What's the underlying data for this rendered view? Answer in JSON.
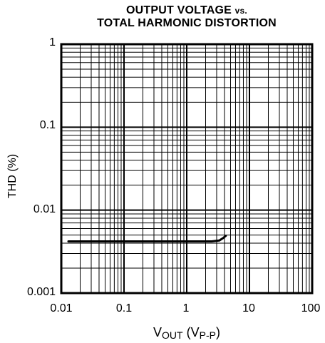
{
  "chart_data": {
    "type": "line",
    "title_line1_main": "OUTPUT VOLTAGE",
    "title_line1_small": "vs.",
    "title_line2": "TOTAL HARMONIC DISTORTION",
    "xlabel_main": "V",
    "xlabel_sub1": "OUT",
    "xlabel_paren_open": " (V",
    "xlabel_sub2": "P-P",
    "xlabel_paren_close": ")",
    "ylabel": "THD (%)",
    "x_scale": "log",
    "y_scale": "log",
    "xlim": [
      0.01,
      100
    ],
    "ylim": [
      0.001,
      1
    ],
    "x_ticks": [
      "0.01",
      "0.1",
      "1",
      "10",
      "100"
    ],
    "y_ticks": [
      "1",
      "0.1",
      "0.01",
      "0.001"
    ],
    "grid": true,
    "series": [
      {
        "x": [
          0.013,
          0.05,
          0.2,
          1,
          2.5,
          3.3,
          3.8,
          4.2
        ],
        "y": [
          0.0042,
          0.0042,
          0.0042,
          0.0042,
          0.0042,
          0.0043,
          0.0046,
          0.0049
        ]
      }
    ]
  }
}
